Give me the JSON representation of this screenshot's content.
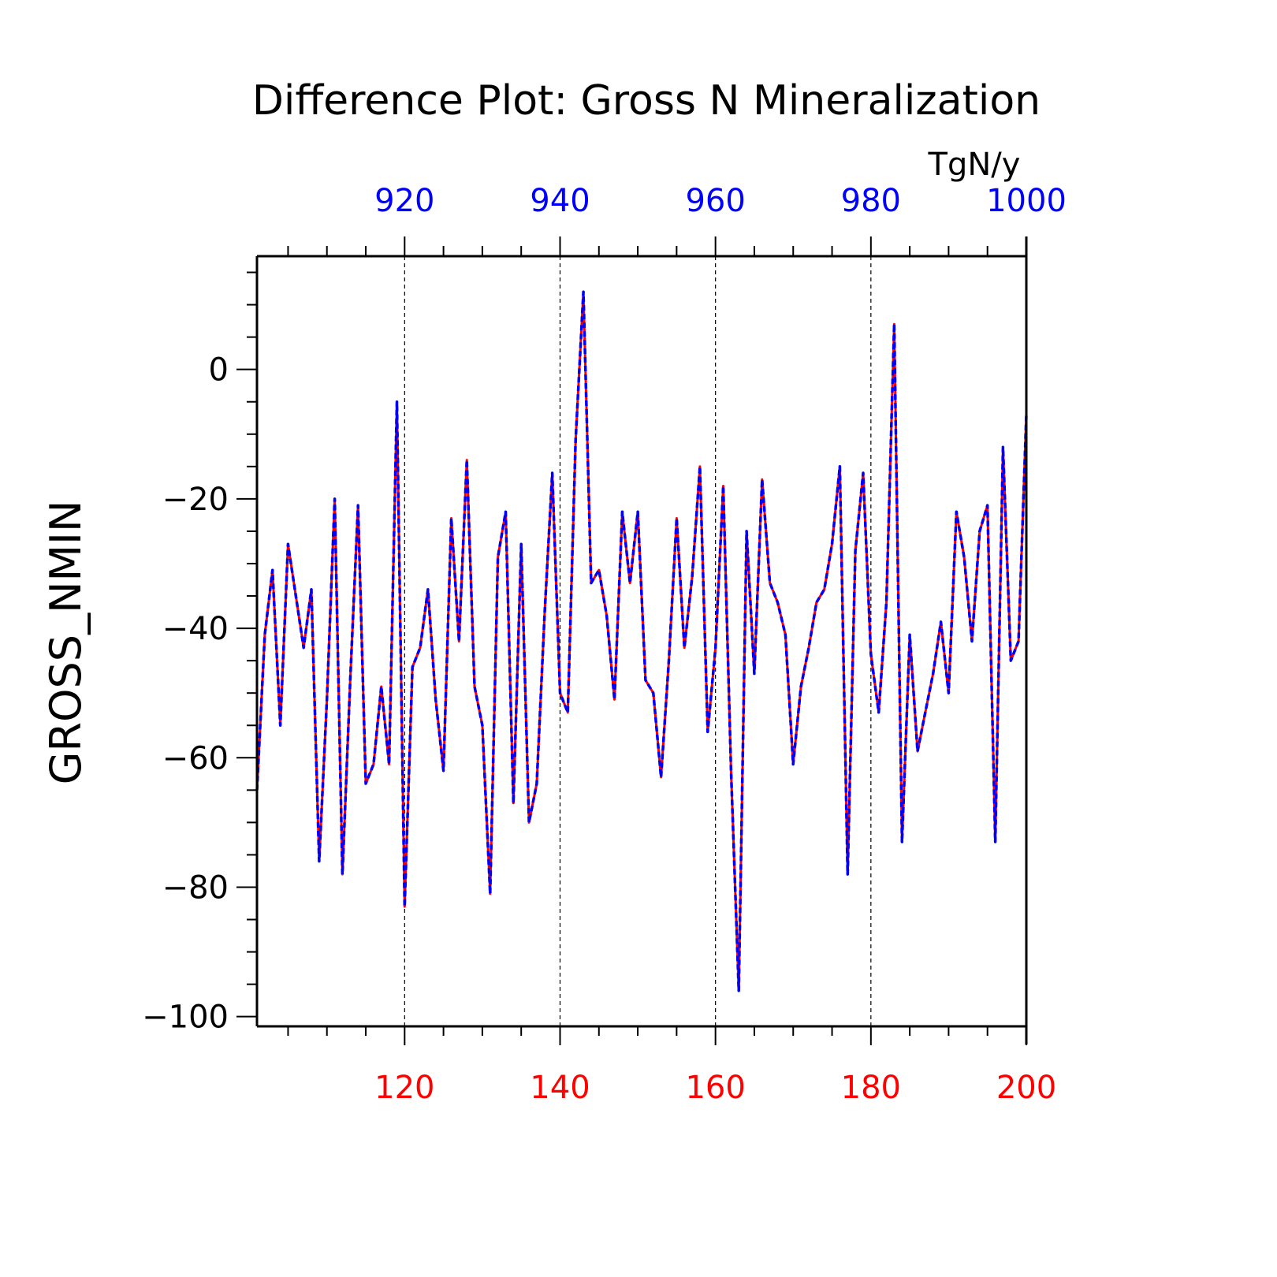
{
  "chart_data": {
    "type": "line",
    "title": "Difference Plot: Gross N Mineralization",
    "units": "TgN/y",
    "ylabel": "GROSS_NMIN",
    "xlim": [
      101,
      200
    ],
    "ylim": [
      -101.5,
      17.5
    ],
    "bottom_xticks": [
      "120",
      "140",
      "160",
      "180",
      "200"
    ],
    "bottom_xtick_values": [
      120,
      140,
      160,
      180,
      200
    ],
    "top_xticks": [
      "920",
      "940",
      "960",
      "980",
      "1000"
    ],
    "yticks": [
      "0",
      "−20",
      "−40",
      "−60",
      "−80",
      "−100"
    ],
    "ytick_values": [
      0,
      -20,
      -40,
      -60,
      -80,
      -100
    ],
    "grid_x": [
      120,
      140,
      160,
      180
    ],
    "colors": {
      "bottom_axis": "#ff0000",
      "top_axis": "#0000ff",
      "series_a": "#ff0000",
      "series_b": "#0000ff",
      "grid": "#000000"
    },
    "x": [
      101,
      102,
      103,
      104,
      105,
      106,
      107,
      108,
      109,
      110,
      111,
      112,
      113,
      114,
      115,
      116,
      117,
      118,
      119,
      120,
      121,
      122,
      123,
      124,
      125,
      126,
      127,
      128,
      129,
      130,
      131,
      132,
      133,
      134,
      135,
      136,
      137,
      138,
      139,
      140,
      141,
      142,
      143,
      144,
      145,
      146,
      147,
      148,
      149,
      150,
      151,
      152,
      153,
      154,
      155,
      156,
      157,
      158,
      159,
      160,
      161,
      162,
      163,
      164,
      165,
      166,
      167,
      168,
      169,
      170,
      171,
      172,
      173,
      174,
      175,
      176,
      177,
      178,
      179,
      180,
      181,
      182,
      183,
      184,
      185,
      186,
      187,
      188,
      189,
      190,
      191,
      192,
      193,
      194,
      195,
      196,
      197,
      198,
      199,
      200
    ],
    "series": [
      {
        "values": [
          -65,
          -41,
          -31,
          -55,
          -27,
          -35,
          -43,
          -34,
          -76,
          -51,
          -20,
          -78,
          -48,
          -21,
          -64,
          -61,
          -49,
          -61,
          -5,
          -83,
          -46,
          -43,
          -34,
          -51,
          -62,
          -23,
          -42,
          -14,
          -49,
          -55,
          -81,
          -29,
          -22,
          -67,
          -27,
          -70,
          -64,
          -38,
          -16,
          -50,
          -53,
          -11,
          12,
          -33,
          -31,
          -38,
          -51,
          -22,
          -33,
          -22,
          -48,
          -50,
          -63,
          -45,
          -23,
          -43,
          -32,
          -15,
          -56,
          -43,
          -18,
          -62,
          -96,
          -25,
          -47,
          -17,
          -33,
          -36,
          -41,
          -61,
          -49,
          -43,
          -36,
          -34,
          -27,
          -15,
          -78,
          -28,
          -16,
          -44,
          -53,
          -36,
          7,
          -73,
          -41,
          -59,
          -53,
          -47,
          -39,
          -50,
          -22,
          -29,
          -42,
          -25,
          -21,
          -73,
          -12,
          -45,
          -42,
          -7
        ]
      },
      {
        "values": [
          -65,
          -41,
          -31,
          -55,
          -27,
          -35,
          -43,
          -34,
          -76,
          -51,
          -20,
          -78,
          -48,
          -21,
          -64,
          -61,
          -49,
          -61,
          -5,
          -83,
          -46,
          -43,
          -34,
          -51,
          -62,
          -23,
          -42,
          -14,
          -49,
          -55,
          -81,
          -29,
          -22,
          -67,
          -27,
          -70,
          -64,
          -38,
          -16,
          -50,
          -53,
          -11,
          12,
          -33,
          -31,
          -38,
          -51,
          -22,
          -33,
          -22,
          -48,
          -50,
          -63,
          -45,
          -23,
          -43,
          -32,
          -15,
          -56,
          -43,
          -18,
          -62,
          -96,
          -25,
          -47,
          -17,
          -33,
          -36,
          -41,
          -61,
          -49,
          -43,
          -36,
          -34,
          -27,
          -15,
          -78,
          -28,
          -16,
          -44,
          -53,
          -36,
          7,
          -73,
          -41,
          -59,
          -53,
          -47,
          -39,
          -50,
          -22,
          -29,
          -42,
          -25,
          -21,
          -73,
          -12,
          -45,
          -42,
          -7
        ]
      }
    ]
  }
}
